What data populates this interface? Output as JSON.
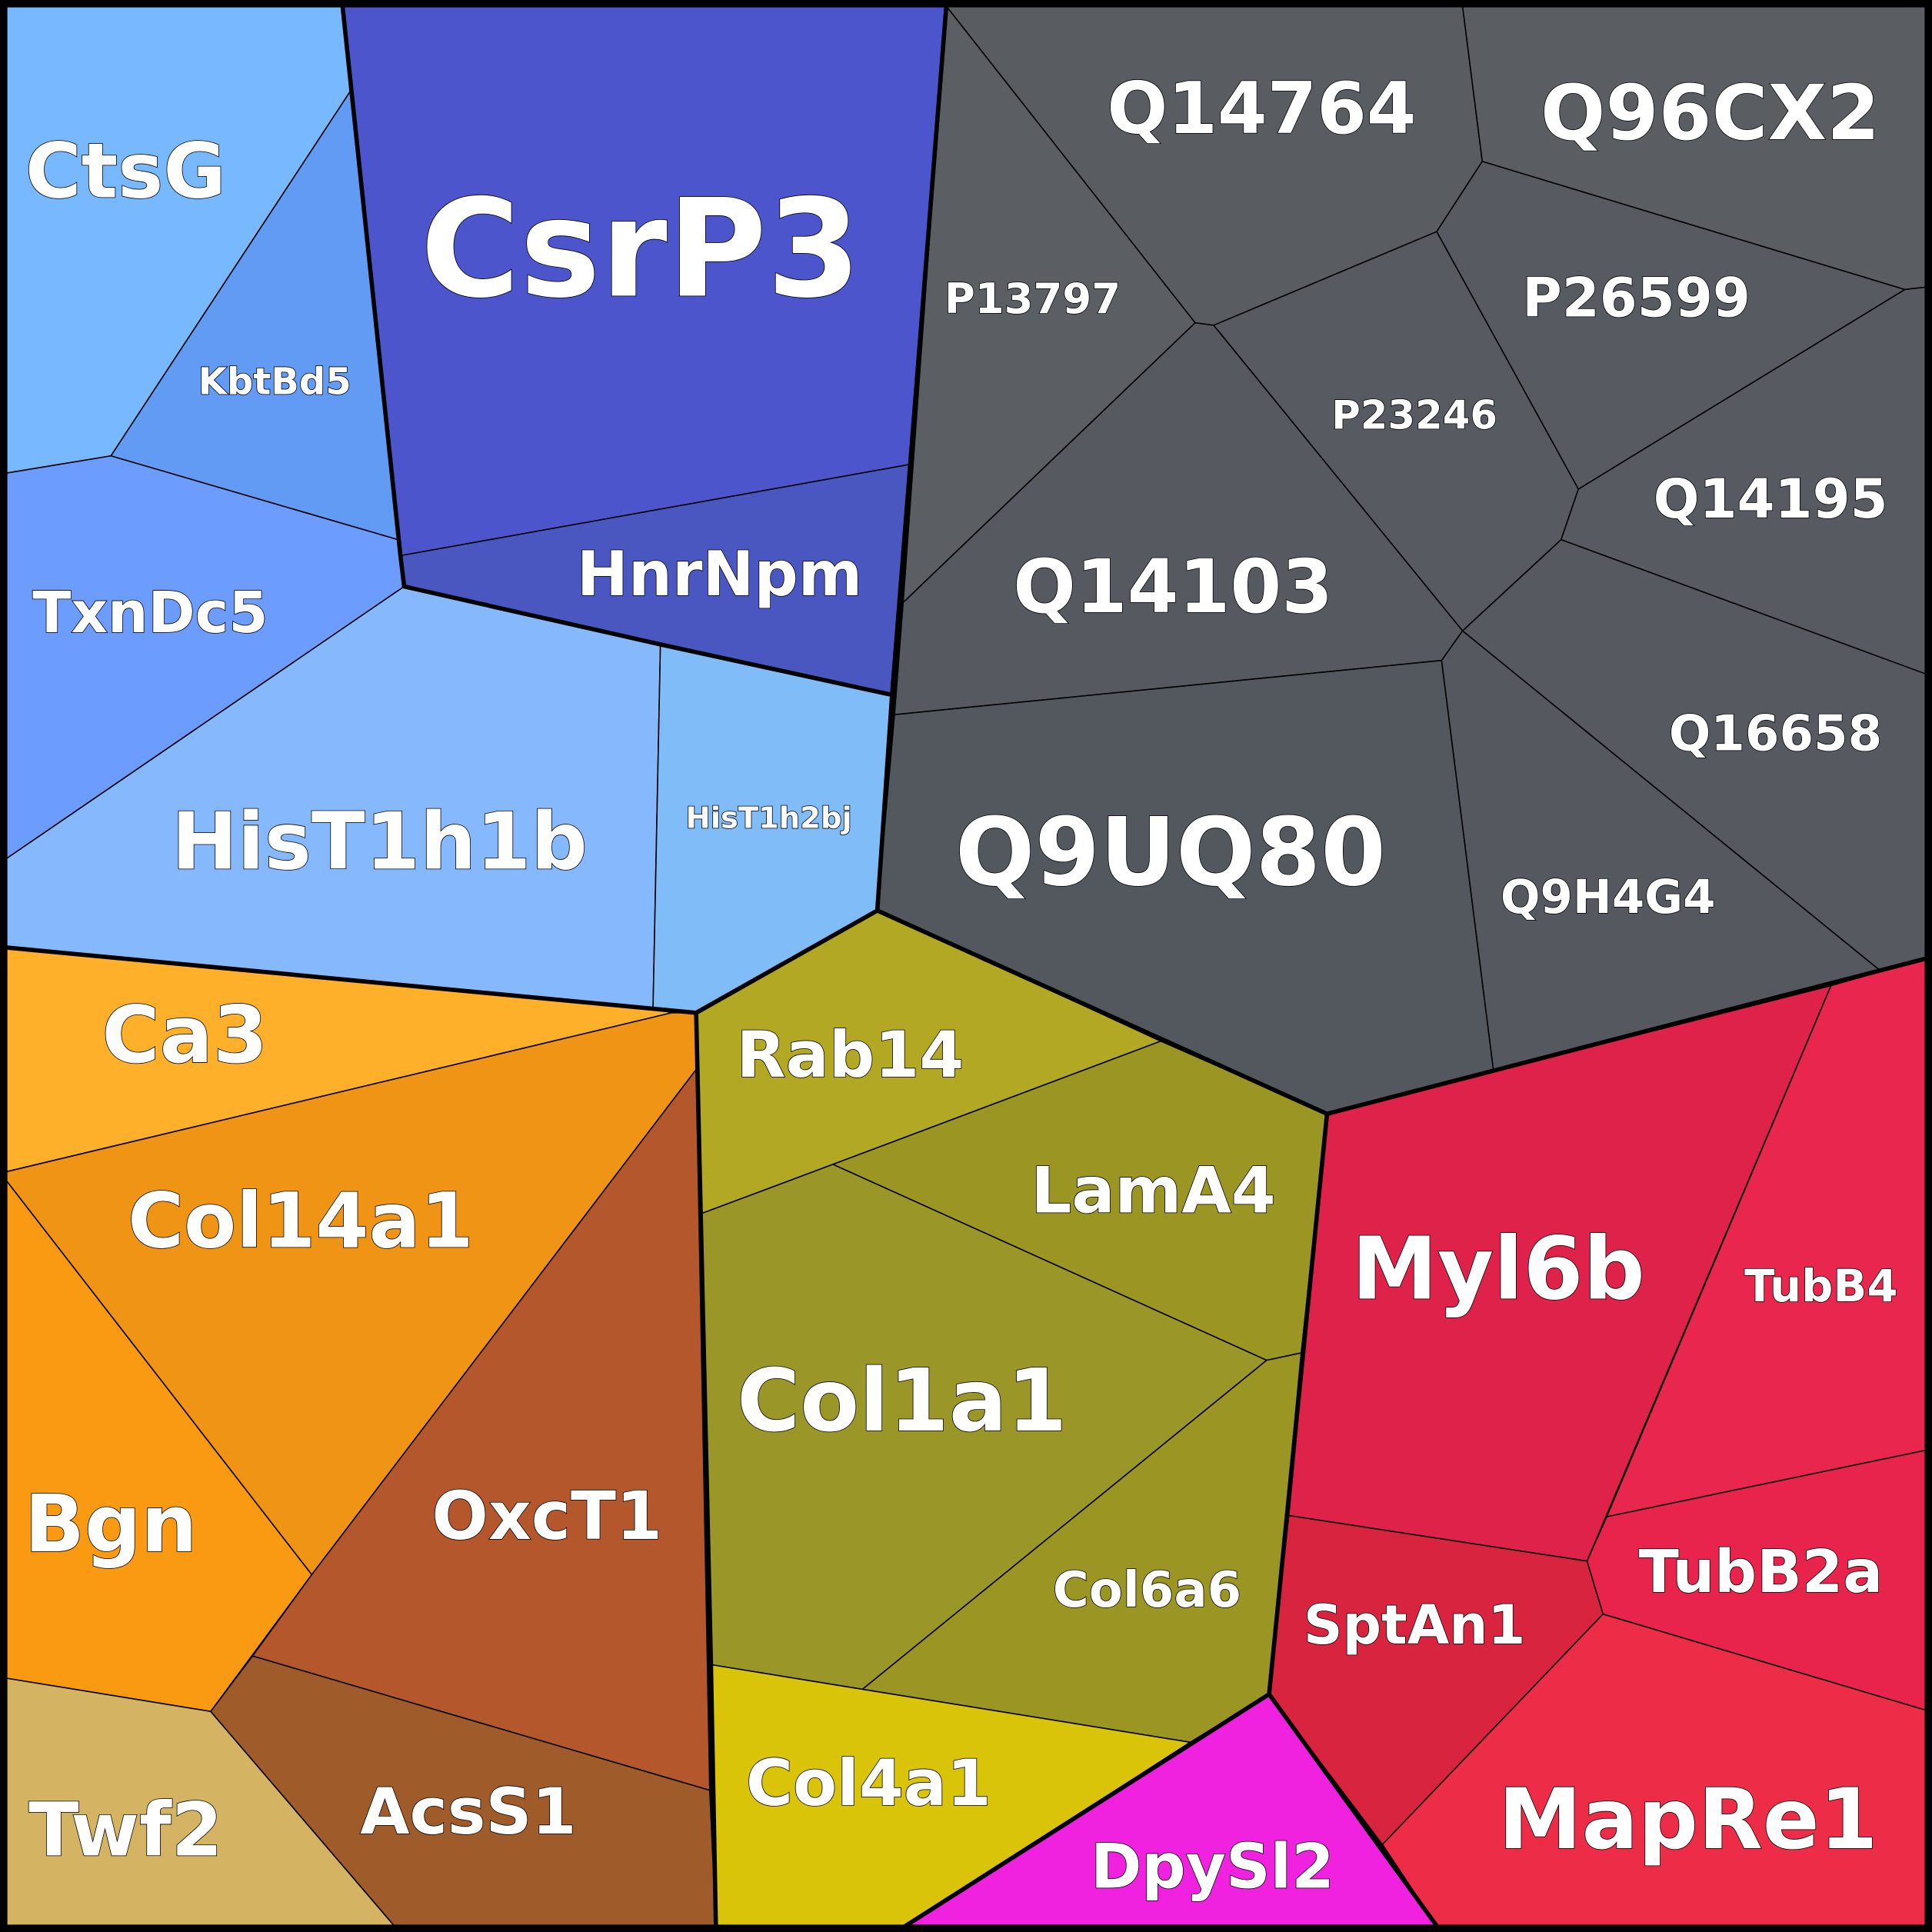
{
  "diagram": {
    "type": "voronoi-treemap",
    "cells": [
      {
        "label": "CtsG",
        "group": "blue",
        "color": "#78b8fe"
      },
      {
        "label": "KbtBd5",
        "group": "blue",
        "color": "#629bf4"
      },
      {
        "label": "TxnDc5",
        "group": "blue",
        "color": "#6b9cfe"
      },
      {
        "label": "HisT1h1b",
        "group": "blue",
        "color": "#86b8fe"
      },
      {
        "label": "HisT1h2bj",
        "group": "blue",
        "color": "#7fbcf8"
      },
      {
        "label": "CsrP3",
        "group": "purple",
        "color": "#4c55cc"
      },
      {
        "label": "HnrNpm",
        "group": "purple",
        "color": "#4a57c0"
      },
      {
        "label": "Q14764",
        "group": "gray",
        "color": "#595c61"
      },
      {
        "label": "Q96CX2",
        "group": "gray",
        "color": "#5a5d62"
      },
      {
        "label": "P13797",
        "group": "gray",
        "color": "#5b5e63"
      },
      {
        "label": "P26599",
        "group": "gray",
        "color": "#575b61"
      },
      {
        "label": "P23246",
        "group": "gray",
        "color": "#575a60"
      },
      {
        "label": "Q14195",
        "group": "gray",
        "color": "#575b61"
      },
      {
        "label": "Q14103",
        "group": "gray",
        "color": "#565a60"
      },
      {
        "label": "Q16658",
        "group": "gray",
        "color": "#56595f"
      },
      {
        "label": "Q9UQ80",
        "group": "gray",
        "color": "#53585e"
      },
      {
        "label": "Q9H4G4",
        "group": "gray",
        "color": "#55595f"
      },
      {
        "label": "Ca3",
        "group": "orange",
        "color": "#feb02a"
      },
      {
        "label": "Col14a1",
        "group": "orange",
        "color": "#f09416"
      },
      {
        "label": "Bgn",
        "group": "orange",
        "color": "#f99a12"
      },
      {
        "label": "OxcT1",
        "group": "orange",
        "color": "#b4572c"
      },
      {
        "label": "Twf2",
        "group": "orange",
        "color": "#d4b462"
      },
      {
        "label": "AcsS1",
        "group": "orange",
        "color": "#a05b2a"
      },
      {
        "label": "Rab14",
        "group": "olive",
        "color": "#b3a823"
      },
      {
        "label": "LamA4",
        "group": "olive",
        "color": "#9b9624"
      },
      {
        "label": "Col1a1",
        "group": "olive",
        "color": "#9a9628"
      },
      {
        "label": "Col6a6",
        "group": "olive",
        "color": "#9b9624"
      },
      {
        "label": "Col4a1",
        "group": "olive",
        "color": "#d9c40a"
      },
      {
        "label": "DpySl2",
        "group": "magenta",
        "color": "#f022e0"
      },
      {
        "label": "Myl6b",
        "group": "red",
        "color": "#de2249"
      },
      {
        "label": "TubB4",
        "group": "red",
        "color": "#e9264d"
      },
      {
        "label": "TubB2a",
        "group": "red",
        "color": "#e8234c"
      },
      {
        "label": "SptAn1",
        "group": "red",
        "color": "#d92440"
      },
      {
        "label": "MapRe1",
        "group": "red",
        "color": "#ed2c47"
      }
    ]
  }
}
